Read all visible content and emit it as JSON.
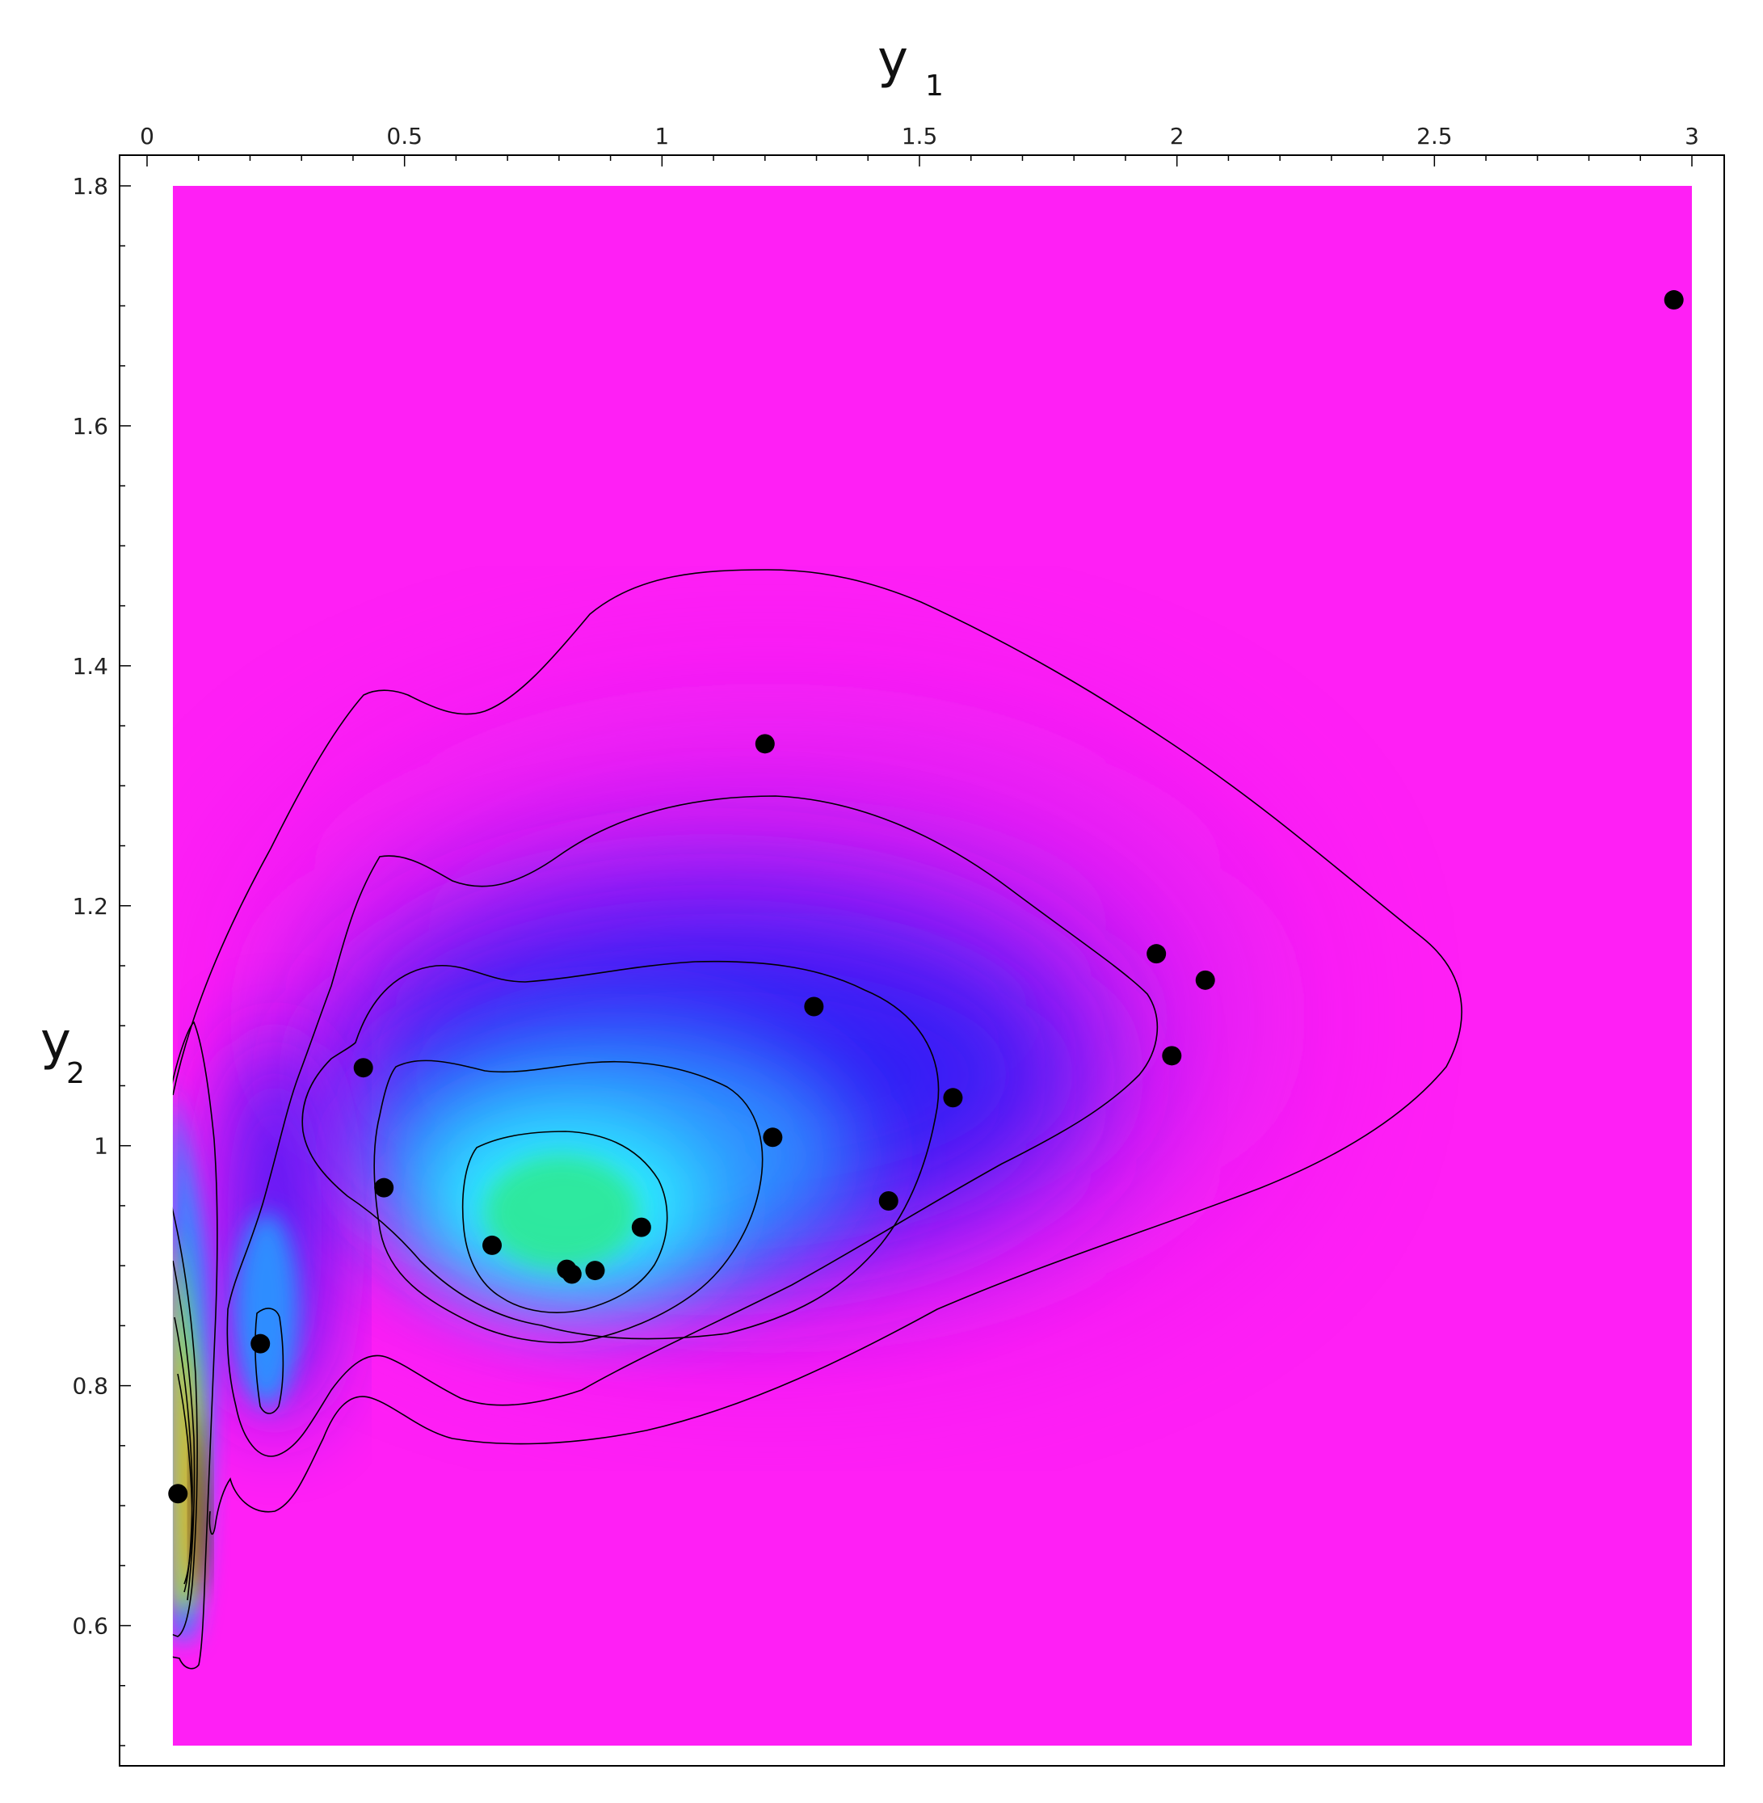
{
  "chart_data": {
    "type": "scatter",
    "title": "",
    "xlabel": "y",
    "xlabel_subscript": "1",
    "ylabel": "y",
    "ylabel_subscript": "2",
    "x_axis_position": "top",
    "xlim": [
      0,
      3
    ],
    "ylim": [
      0.5,
      1.8
    ],
    "shaded_region_x": [
      0.05,
      3.0
    ],
    "shaded_region_y": [
      0.5,
      1.8
    ],
    "x_ticks": [
      0,
      0.5,
      1,
      1.5,
      2,
      2.5,
      3
    ],
    "x_tick_labels": [
      "0",
      "0.5",
      "1",
      "1.5",
      "2",
      "2.5",
      "3"
    ],
    "y_ticks": [
      0.6,
      0.8,
      1,
      1.2,
      1.4,
      1.6,
      1.8
    ],
    "y_tick_labels": [
      "0.6",
      "0.8",
      "1",
      "1.2",
      "1.4",
      "1.6",
      "1.8"
    ],
    "grid": false,
    "colormap": [
      "#ff1ff5",
      "#b51ff5",
      "#2a1ff5",
      "#2f8dff",
      "#2ff5ff",
      "#2fe88f",
      "#b5ff2f",
      "#ff8a1f",
      "#1a0a0a"
    ],
    "point_color": "#000000",
    "contour_color": "#000000",
    "points": [
      {
        "x": 0.06,
        "y": 0.71
      },
      {
        "x": 0.22,
        "y": 0.835
      },
      {
        "x": 0.42,
        "y": 1.065
      },
      {
        "x": 0.46,
        "y": 0.965
      },
      {
        "x": 0.67,
        "y": 0.917
      },
      {
        "x": 0.815,
        "y": 0.897
      },
      {
        "x": 0.825,
        "y": 0.893
      },
      {
        "x": 0.87,
        "y": 0.896
      },
      {
        "x": 0.96,
        "y": 0.932
      },
      {
        "x": 1.2,
        "y": 1.335
      },
      {
        "x": 1.215,
        "y": 1.007
      },
      {
        "x": 1.295,
        "y": 1.116
      },
      {
        "x": 1.44,
        "y": 0.954
      },
      {
        "x": 1.565,
        "y": 1.04
      },
      {
        "x": 1.96,
        "y": 1.16
      },
      {
        "x": 1.99,
        "y": 1.075
      },
      {
        "x": 2.055,
        "y": 1.138
      },
      {
        "x": 2.965,
        "y": 1.705
      }
    ]
  }
}
